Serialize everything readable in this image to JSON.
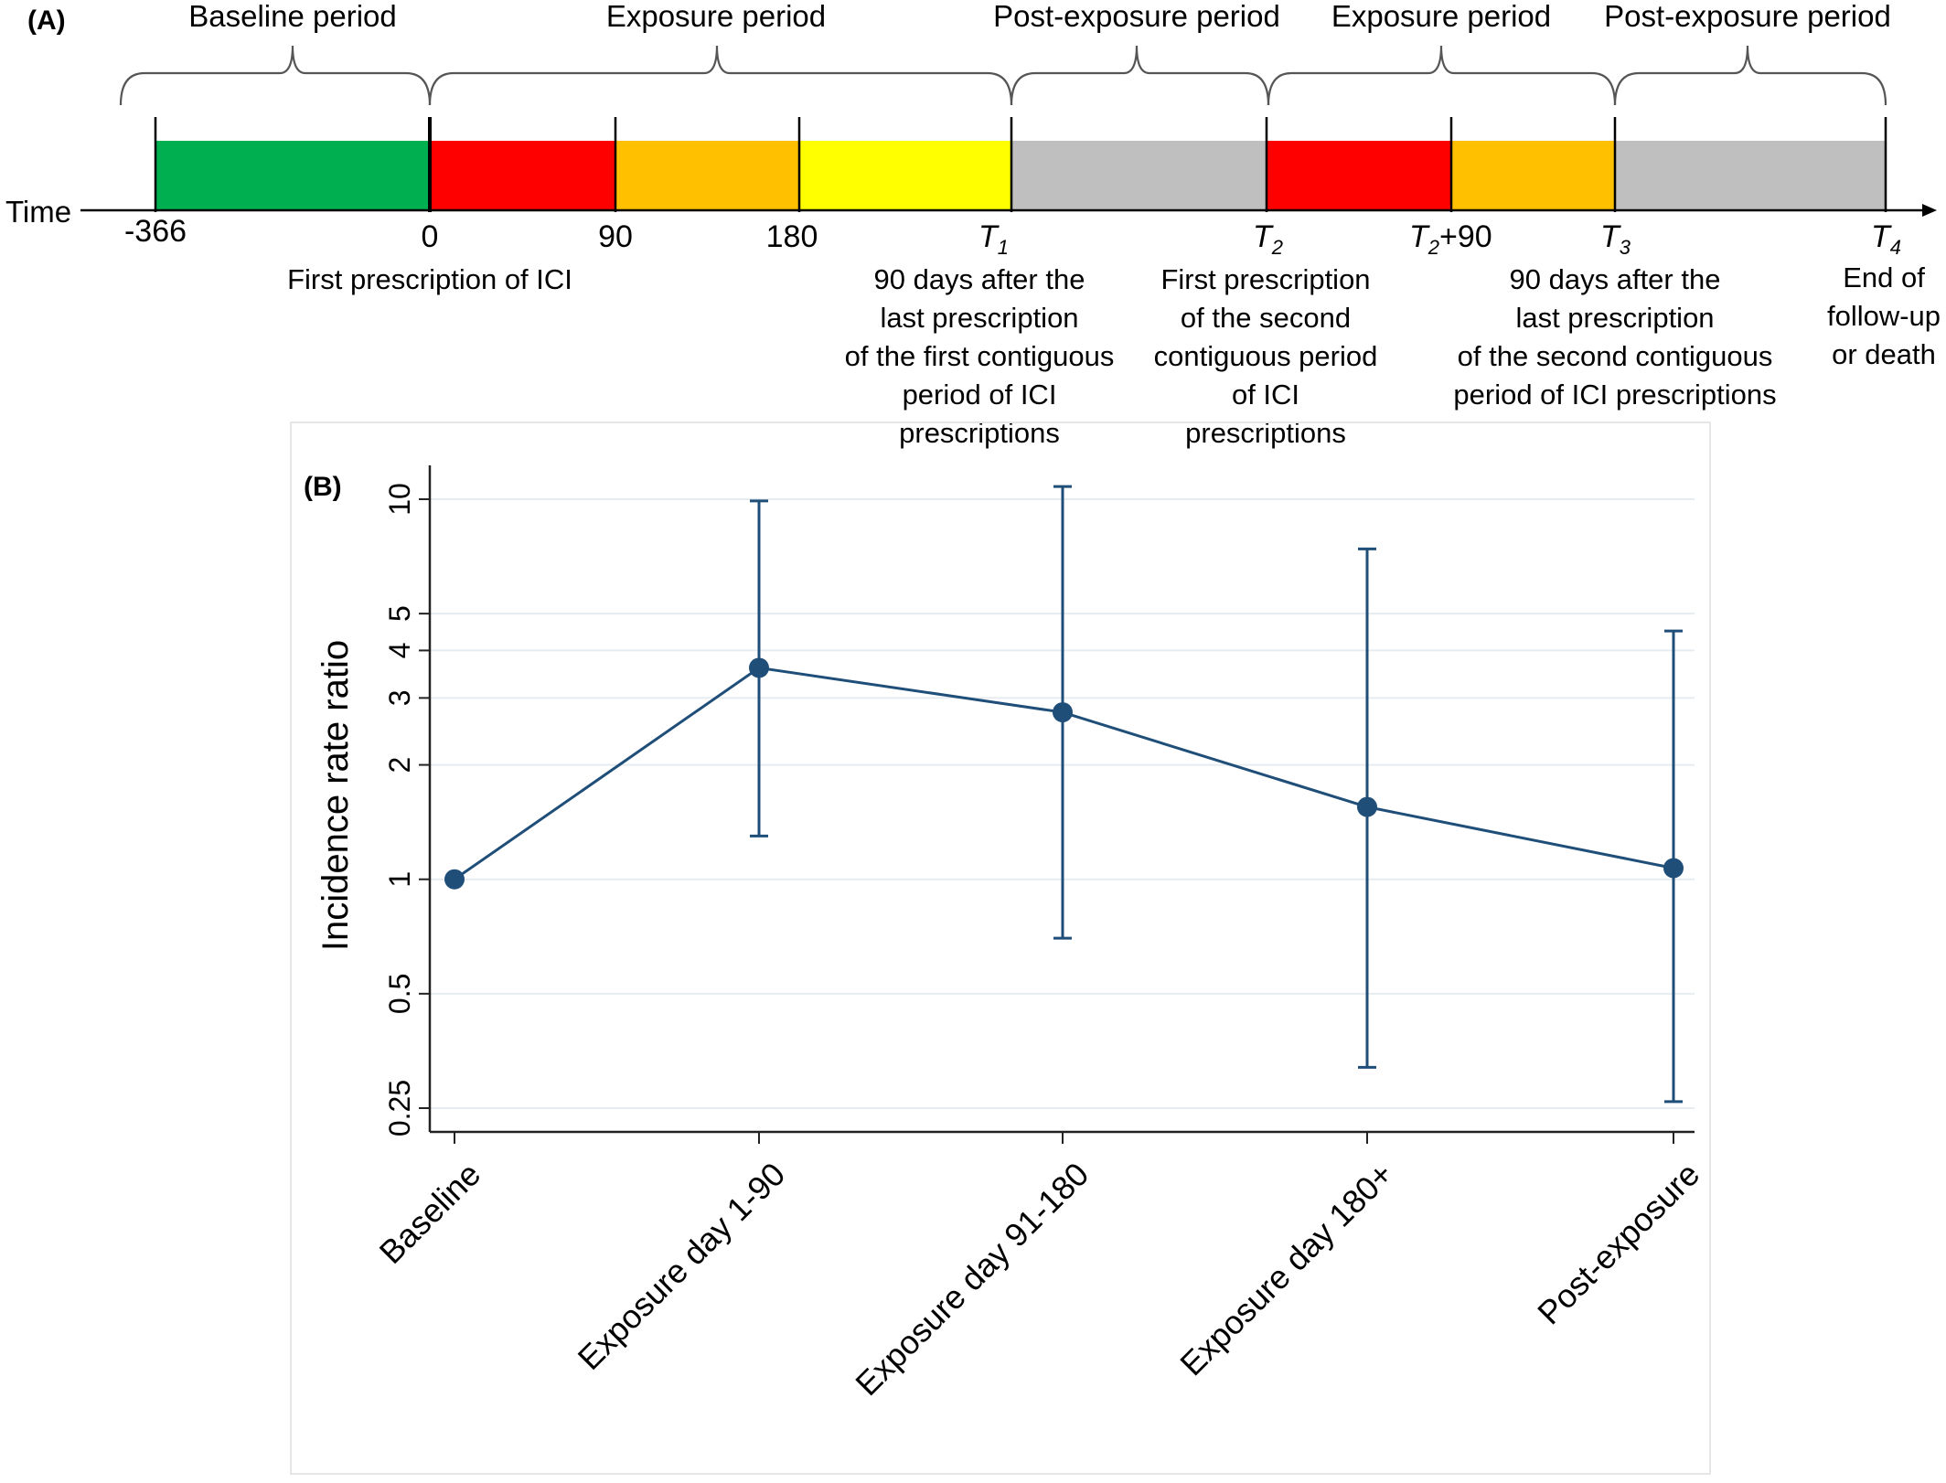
{
  "panel_a": {
    "label": "(A)",
    "periods": [
      {
        "label": "Baseline period"
      },
      {
        "label": "Exposure period"
      },
      {
        "label": "Post-exposure period"
      },
      {
        "label": "Exposure period"
      },
      {
        "label": "Post-exposure period"
      }
    ],
    "time_label": "Time",
    "bar_colors": [
      "#00b050",
      "#ff0000",
      "#ffc000",
      "#ffff00",
      "#bfbfbf",
      "#ff0000",
      "#ffc000",
      "#bfbfbf"
    ],
    "ticks": [
      {
        "text": "-366"
      },
      {
        "text": "0"
      },
      {
        "text": "90"
      },
      {
        "text": "180"
      },
      {
        "base": "T",
        "sub": "1",
        "suffix": ""
      },
      {
        "base": "T",
        "sub": "2",
        "suffix": ""
      },
      {
        "base": "T",
        "sub": "2",
        "suffix": "+90"
      },
      {
        "base": "T",
        "sub": "3",
        "suffix": ""
      },
      {
        "base": "T",
        "sub": "4",
        "suffix": ""
      }
    ],
    "descriptions": {
      "zero": [
        "First prescription of ICI"
      ],
      "t1": [
        "90 days after the",
        "last prescription",
        "of the first contiguous",
        "period of ICI",
        "prescriptions"
      ],
      "t2": [
        "First prescription",
        "of the second",
        "contiguous period",
        "of ICI",
        "prescriptions"
      ],
      "t3": [
        "90 days after the",
        "last prescription",
        "of the second contiguous",
        "period of ICI prescriptions"
      ],
      "t4": [
        "End of",
        "follow-up",
        "or death"
      ]
    }
  },
  "chart_data": {
    "type": "line",
    "label": "(B)",
    "title": "",
    "xlabel": "",
    "ylabel": "Incidence rate ratio",
    "yscale": "log",
    "ylim": [
      0.25,
      12
    ],
    "yticks": [
      0.25,
      0.5,
      1,
      2,
      3,
      4,
      5,
      10
    ],
    "ytick_labels": [
      "0.25",
      "0.5",
      "1",
      "2",
      "3",
      "4",
      "5",
      "10"
    ],
    "grid": true,
    "color": "#1f4e79",
    "categories": [
      "Baseline",
      "Exposure day 1-90",
      "Exposure day 91-180",
      "Exposure day 180+",
      "Post-exposure"
    ],
    "values": [
      1.0,
      3.6,
      2.75,
      1.55,
      1.07
    ],
    "ci_lower": [
      null,
      1.3,
      0.7,
      0.32,
      0.26
    ],
    "ci_upper": [
      null,
      9.9,
      10.8,
      7.4,
      4.5
    ]
  }
}
